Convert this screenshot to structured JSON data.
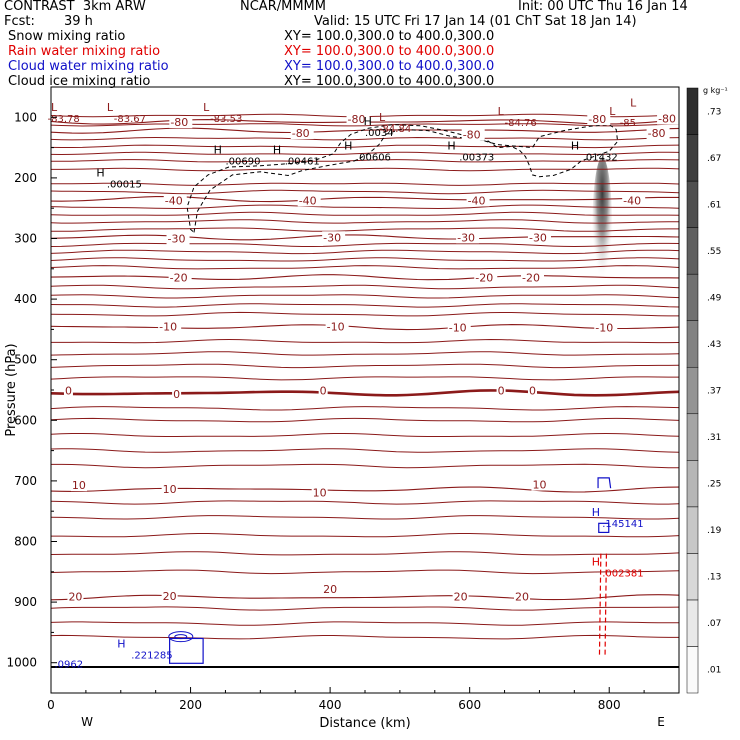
{
  "header": {
    "model": "CONTRAST  3km ARW",
    "center": "NCAR/MMMM",
    "init": "Init: 00 UTC Thu 16 Jan 14",
    "fcst_label": "Fcst:",
    "fcst_value": "39 h",
    "valid": "Valid: 15 UTC Fri 17 Jan 14 (01 ChT Sat 18 Jan 14)"
  },
  "fields": [
    {
      "name": "Snow mixing ratio",
      "xy": "XY= 100.0,300.0 to 400.0,300.0",
      "color": "#000000"
    },
    {
      "name": "Rain water mixing ratio",
      "xy": "XY= 100.0,300.0 to 400.0,300.0",
      "color": "#e00000"
    },
    {
      "name": "Cloud water mixing ratio",
      "xy": "XY= 100.0,300.0 to 400.0,300.0",
      "color": "#1010c8"
    },
    {
      "name": "Cloud ice mixing ratio",
      "xy": "XY= 100.0,300.0 to 400.0,300.0",
      "color": "#000000"
    }
  ],
  "colors": {
    "temperature_contour": "#8b1a1a",
    "cloud_ice_contour": "#000000",
    "cloud_water_contour": "#1010c8",
    "rain_contour": "#e00000",
    "snow_shading": "#555555"
  },
  "chart_data": {
    "type": "cross-section",
    "xlabel": "Distance (km)",
    "ylabel": "Pressure (hPa)",
    "xlim": [
      0,
      900
    ],
    "ylim": [
      1050,
      50
    ],
    "xticks": [
      0,
      200,
      400,
      600,
      800
    ],
    "yticks": [
      100,
      200,
      300,
      400,
      500,
      600,
      700,
      800,
      900,
      1000
    ],
    "x_end_labels": {
      "left": "W",
      "right": "E"
    },
    "colorbar": {
      "units": "g kg⁻¹",
      "labels": [
        ".01",
        ".07",
        ".13",
        ".19",
        ".25",
        ".31",
        ".37",
        ".43",
        ".49",
        ".55",
        ".61",
        ".67",
        ".73"
      ]
    },
    "temperature_isotherms": [
      {
        "value": -80,
        "p": 107
      },
      {
        "value": -80,
        "p": 122
      },
      {
        "value": -40,
        "p": 235
      },
      {
        "value": -30,
        "p": 298
      },
      {
        "value": -20,
        "p": 364
      },
      {
        "value": -10,
        "p": 446
      },
      {
        "value": 0,
        "p": 555
      },
      {
        "value": 10,
        "p": 714
      },
      {
        "value": 20,
        "p": 892
      }
    ],
    "isotherm_labels": [
      {
        "text": "-80",
        "x": 425,
        "p": 103
      },
      {
        "text": "-80",
        "x": 171,
        "p": 108
      },
      {
        "text": "-80",
        "x": 770,
        "p": 103
      },
      {
        "text": "-80",
        "x": 870,
        "p": 102
      },
      {
        "text": "-80",
        "x": 345,
        "p": 126
      },
      {
        "text": "-80",
        "x": 590,
        "p": 128
      },
      {
        "text": "-80",
        "x": 855,
        "p": 126
      },
      {
        "text": "-40",
        "x": 163,
        "p": 237
      },
      {
        "text": "-40",
        "x": 355,
        "p": 237
      },
      {
        "text": "-40",
        "x": 597,
        "p": 237
      },
      {
        "text": "-40",
        "x": 820,
        "p": 237
      },
      {
        "text": "-30",
        "x": 167,
        "p": 300
      },
      {
        "text": "-30",
        "x": 390,
        "p": 298
      },
      {
        "text": "-30",
        "x": 582,
        "p": 298
      },
      {
        "text": "-30",
        "x": 685,
        "p": 298
      },
      {
        "text": "-20",
        "x": 170,
        "p": 364
      },
      {
        "text": "-20",
        "x": 608,
        "p": 364
      },
      {
        "text": "-20",
        "x": 675,
        "p": 364
      },
      {
        "text": "-10",
        "x": 155,
        "p": 445
      },
      {
        "text": "-10",
        "x": 395,
        "p": 445
      },
      {
        "text": "-10",
        "x": 570,
        "p": 447
      },
      {
        "text": "-10",
        "x": 780,
        "p": 447
      },
      {
        "text": "0",
        "x": 20,
        "p": 551
      },
      {
        "text": "0",
        "x": 175,
        "p": 557
      },
      {
        "text": "0",
        "x": 385,
        "p": 551
      },
      {
        "text": "0",
        "x": 640,
        "p": 551
      },
      {
        "text": "0",
        "x": 685,
        "p": 551
      },
      {
        "text": "10",
        "x": 30,
        "p": 707
      },
      {
        "text": "10",
        "x": 160,
        "p": 713
      },
      {
        "text": "10",
        "x": 375,
        "p": 719
      },
      {
        "text": "10",
        "x": 690,
        "p": 706
      },
      {
        "text": "20",
        "x": 25,
        "p": 891
      },
      {
        "text": "20",
        "x": 160,
        "p": 890
      },
      {
        "text": "20",
        "x": 390,
        "p": 878
      },
      {
        "text": "20",
        "x": 577,
        "p": 891
      },
      {
        "text": "20",
        "x": 665,
        "p": 891
      }
    ],
    "extrema_labels": [
      {
        "mark": "L",
        "value": "-83.78",
        "x_mark": 0,
        "x_value": -5,
        "p": 90,
        "color": "#8b1a1a"
      },
      {
        "mark": "L",
        "value": "-83.67",
        "x_mark": 80,
        "x_value": 90,
        "p": 90,
        "color": "#8b1a1a"
      },
      {
        "mark": "L",
        "value": "-83.53",
        "x_mark": 218,
        "x_value": 228,
        "p": 90,
        "color": "#8b1a1a"
      },
      {
        "mark": "L",
        "value": "-84.84",
        "x_mark": 470,
        "x_value": 470,
        "p": 106,
        "color": "#8b1a1a"
      },
      {
        "mark": "L",
        "value": "-84.76",
        "x_mark": 640,
        "x_value": 650,
        "p": 96,
        "color": "#8b1a1a"
      },
      {
        "mark": "L",
        "value": "-85",
        "x_mark": 800,
        "x_value": 815,
        "p": 96,
        "color": "#8b1a1a"
      },
      {
        "mark": "L",
        "value": "",
        "x_mark": 830,
        "x_value": 830,
        "p": 82,
        "color": "#8b1a1a"
      },
      {
        "mark": "H",
        "value": ".00015",
        "x_mark": 65,
        "x_value": 80,
        "p": 198,
        "color": "#000000"
      },
      {
        "mark": "H",
        "value": ".00690",
        "x_mark": 233,
        "x_value": 250,
        "p": 160,
        "color": "#000000"
      },
      {
        "mark": "H",
        "value": ".00461",
        "x_mark": 318,
        "x_value": 335,
        "p": 160,
        "color": "#000000"
      },
      {
        "mark": "H",
        "value": ".0034",
        "x_mark": 448,
        "x_value": 450,
        "p": 113,
        "color": "#000000"
      },
      {
        "mark": "H",
        "value": ".00606",
        "x_mark": 420,
        "x_value": 437,
        "p": 153,
        "color": "#000000"
      },
      {
        "mark": "H",
        "value": ".00373",
        "x_mark": 568,
        "x_value": 585,
        "p": 153,
        "color": "#000000"
      },
      {
        "mark": "H",
        "value": ".01432",
        "x_mark": 745,
        "x_value": 762,
        "p": 153,
        "color": "#000000"
      },
      {
        "mark": "H",
        "value": ".145141",
        "x_mark": 775,
        "x_value": 790,
        "p": 758,
        "color": "#1010c8"
      },
      {
        "mark": "H",
        "value": ".002381",
        "x_mark": 775,
        "x_value": 790,
        "p": 840,
        "color": "#e00000"
      },
      {
        "mark": "H",
        "value": ".221285",
        "x_mark": 95,
        "x_value": 115,
        "p": 975,
        "color": "#1010c8"
      },
      {
        "mark": "",
        "value": ".0962",
        "x_mark": -5,
        "x_value": 5,
        "p": 990,
        "color": "#1010c8"
      }
    ]
  }
}
